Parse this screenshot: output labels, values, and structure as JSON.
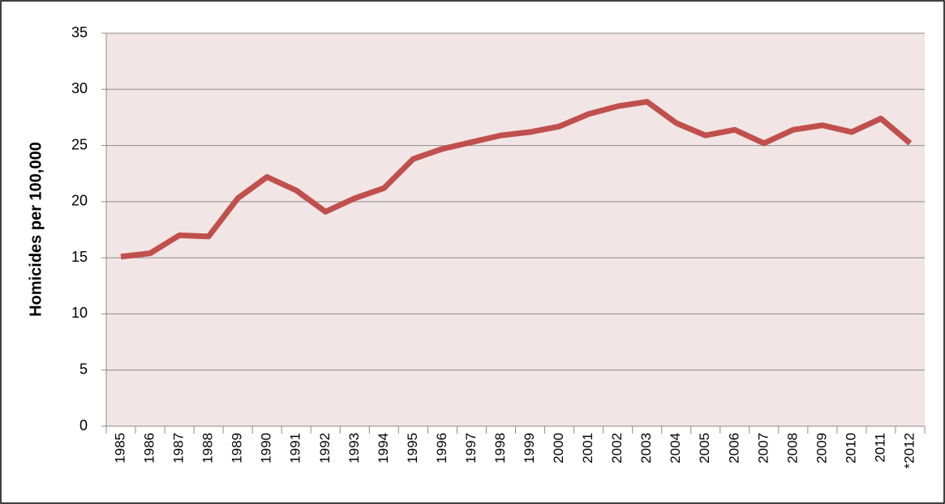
{
  "chart_data": {
    "type": "line",
    "y_label": "Homicides per 100,000",
    "categories": [
      "1985",
      "1986",
      "1987",
      "1988",
      "1989",
      "1990",
      "1991",
      "1992",
      "1993",
      "1994",
      "1995",
      "1996",
      "1997",
      "1998",
      "1999",
      "2000",
      "2001",
      "2002",
      "2003",
      "2004",
      "2005",
      "2006",
      "2007",
      "2008",
      "2009",
      "2010",
      "2011",
      "*2012"
    ],
    "series": [
      {
        "color": "#c0504d",
        "values": [
          15.1,
          15.4,
          17.0,
          16.9,
          20.3,
          22.2,
          21.0,
          19.1,
          20.3,
          21.2,
          23.8,
          24.7,
          25.3,
          25.9,
          26.2,
          26.7,
          27.8,
          28.5,
          28.9,
          27.0,
          25.9,
          26.4,
          25.2,
          26.4,
          26.8,
          26.2,
          27.4,
          25.2
        ]
      }
    ],
    "ylim": [
      0,
      35
    ],
    "yticks": [
      0,
      5,
      10,
      15,
      20,
      25,
      30,
      35
    ],
    "grid": true,
    "background": "#f2e5e5"
  }
}
